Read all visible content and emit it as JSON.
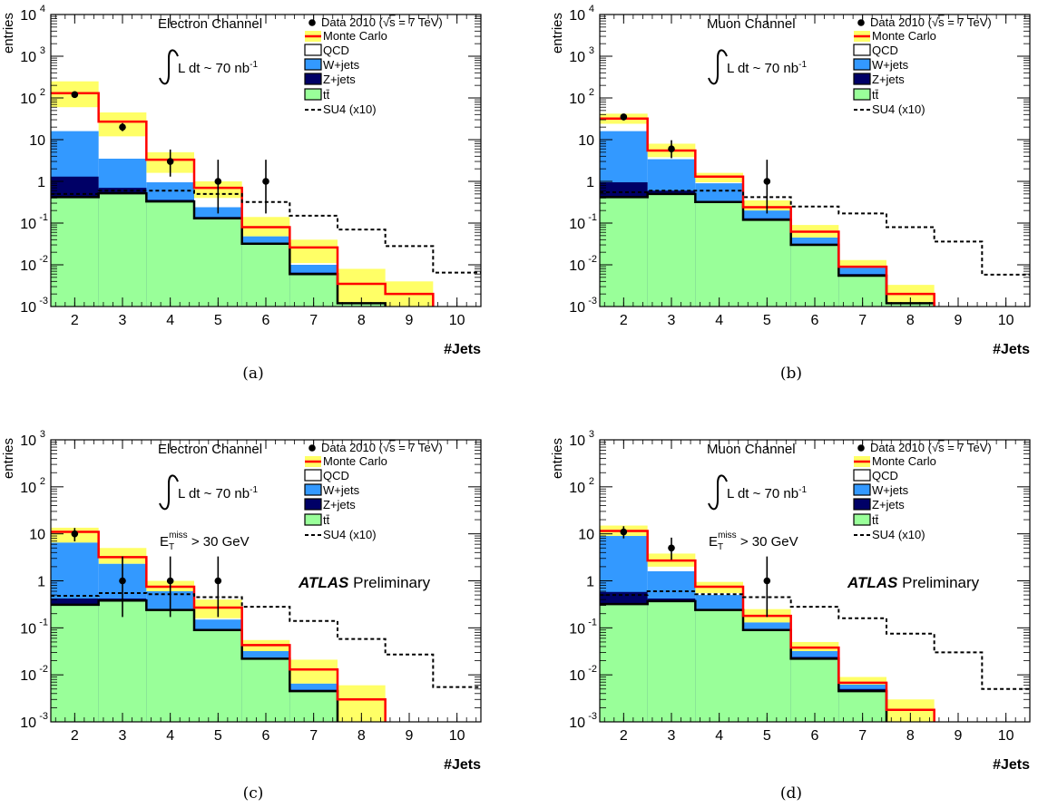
{
  "chart_data": [
    {
      "type": "bar",
      "panel_label": "(a)",
      "channel": "Electron Channel",
      "lumi": "L dt ~ 70 nb",
      "lumi_sup": "-1",
      "met_cut": null,
      "atlas_label": null,
      "xlabel": "#Jets",
      "ylabel": "entries",
      "log_y": true,
      "ylim": [
        0.001,
        10000
      ],
      "y_ticks": [
        {
          "v": 0.001,
          "b": "10",
          "e": "-3"
        },
        {
          "v": 0.01,
          "b": "10",
          "e": "-2"
        },
        {
          "v": 0.1,
          "b": "10",
          "e": "-1"
        },
        {
          "v": 1,
          "b": "1",
          "e": ""
        },
        {
          "v": 10,
          "b": "10",
          "e": ""
        },
        {
          "v": 100,
          "b": "10",
          "e": "2"
        },
        {
          "v": 1000,
          "b": "10",
          "e": "3"
        },
        {
          "v": 10000,
          "b": "10",
          "e": "4"
        }
      ],
      "x_range": [
        1.5,
        10.5
      ],
      "categories": [
        "2",
        "3",
        "4",
        "5",
        "6",
        "7",
        "8",
        "9",
        "10"
      ],
      "stack": {
        "ttbar": [
          0.42,
          0.52,
          0.33,
          0.13,
          0.032,
          0.006,
          0.0012,
          0.0006,
          0.0006
        ],
        "zjets": [
          1.3,
          0.7,
          0.36,
          0.14,
          0.034,
          0.0065,
          0.0012,
          0.0006,
          0.0006
        ],
        "wjets": [
          16,
          3.5,
          0.95,
          0.24,
          0.048,
          0.01,
          0.0012,
          0.0006,
          0.0006
        ],
        "qcd": [
          16,
          3.5,
          0.95,
          0.24,
          0.048,
          0.01,
          0.0012,
          0.0006,
          0.0006
        ]
      },
      "monte_carlo": [
        130,
        27,
        3.3,
        0.7,
        0.08,
        0.026,
        0.0035,
        0.002,
        0.0006
      ],
      "mc_band_low": [
        60,
        12,
        1.6,
        0.4,
        0.045,
        0.011,
        0.0012,
        0.001,
        0.0006
      ],
      "mc_band_high": [
        250,
        45,
        5,
        1.0,
        0.14,
        0.04,
        0.008,
        0.004,
        0.0006
      ],
      "su4": [
        0.5,
        0.6,
        0.6,
        0.5,
        0.32,
        0.15,
        0.07,
        0.028,
        0.0065
      ],
      "data": [
        {
          "x": 2,
          "y": 120,
          "lo": 110,
          "hi": 132
        },
        {
          "x": 3,
          "y": 20,
          "lo": 16,
          "hi": 25
        },
        {
          "x": 4,
          "y": 3,
          "lo": 1.3,
          "hi": 5.8
        },
        {
          "x": 5,
          "y": 1,
          "lo": 0.17,
          "hi": 3.3
        },
        {
          "x": 6,
          "y": 1,
          "lo": 0.17,
          "hi": 3.3
        }
      ]
    },
    {
      "type": "bar",
      "panel_label": "(b)",
      "channel": "Muon Channel",
      "lumi": "L dt ~ 70 nb",
      "lumi_sup": "-1",
      "met_cut": null,
      "atlas_label": null,
      "xlabel": "#Jets",
      "ylabel": "entries",
      "log_y": true,
      "ylim": [
        0.001,
        10000
      ],
      "y_ticks": [
        {
          "v": 0.001,
          "b": "10",
          "e": "-3"
        },
        {
          "v": 0.01,
          "b": "10",
          "e": "-2"
        },
        {
          "v": 0.1,
          "b": "10",
          "e": "-1"
        },
        {
          "v": 1,
          "b": "1",
          "e": ""
        },
        {
          "v": 10,
          "b": "10",
          "e": ""
        },
        {
          "v": 100,
          "b": "10",
          "e": "2"
        },
        {
          "v": 1000,
          "b": "10",
          "e": "3"
        },
        {
          "v": 10000,
          "b": "10",
          "e": "4"
        }
      ],
      "x_range": [
        1.5,
        10.5
      ],
      "categories": [
        "2",
        "3",
        "4",
        "5",
        "6",
        "7",
        "8",
        "9",
        "10"
      ],
      "stack": {
        "ttbar": [
          0.42,
          0.5,
          0.32,
          0.12,
          0.03,
          0.0055,
          0.0012,
          0.0006,
          0.0006
        ],
        "zjets": [
          0.95,
          0.6,
          0.34,
          0.13,
          0.032,
          0.006,
          0.0012,
          0.0006,
          0.0006
        ],
        "wjets": [
          16,
          3.4,
          0.9,
          0.2,
          0.045,
          0.0085,
          0.0012,
          0.0006,
          0.0006
        ],
        "qcd": [
          16,
          3.4,
          0.9,
          0.2,
          0.045,
          0.0085,
          0.0012,
          0.0006,
          0.0006
        ]
      },
      "monte_carlo": [
        32,
        5.5,
        1.3,
        0.24,
        0.062,
        0.009,
        0.002,
        0.0006,
        0.0006
      ],
      "mc_band_low": [
        24,
        3.8,
        0.95,
        0.17,
        0.042,
        0.006,
        0.0012,
        0.0006,
        0.0006
      ],
      "mc_band_high": [
        42,
        8,
        1.6,
        0.35,
        0.09,
        0.013,
        0.0033,
        0.0006,
        0.0006
      ],
      "su4": [
        0.55,
        0.6,
        0.6,
        0.42,
        0.25,
        0.17,
        0.08,
        0.036,
        0.0058
      ],
      "data": [
        {
          "x": 2,
          "y": 35,
          "lo": 29,
          "hi": 41
        },
        {
          "x": 3,
          "y": 6,
          "lo": 3.6,
          "hi": 9.7
        },
        {
          "x": 5,
          "y": 1,
          "lo": 0.17,
          "hi": 3.3
        }
      ]
    },
    {
      "type": "bar",
      "panel_label": "(c)",
      "channel": "Electron Channel",
      "lumi": "L dt ~ 70 nb",
      "lumi_sup": "-1",
      "met_cut": {
        "base": "E",
        "sub": "T",
        "sup": "miss",
        "rest": " > 30 GeV"
      },
      "atlas_label": {
        "bold": "ATLAS",
        "rest": " Preliminary"
      },
      "xlabel": "#Jets",
      "ylabel": "entries",
      "log_y": true,
      "ylim": [
        0.001,
        1000
      ],
      "y_ticks": [
        {
          "v": 0.001,
          "b": "10",
          "e": "-3"
        },
        {
          "v": 0.01,
          "b": "10",
          "e": "-2"
        },
        {
          "v": 0.1,
          "b": "10",
          "e": "-1"
        },
        {
          "v": 1,
          "b": "1",
          "e": ""
        },
        {
          "v": 10,
          "b": "10",
          "e": ""
        },
        {
          "v": 100,
          "b": "10",
          "e": "2"
        },
        {
          "v": 1000,
          "b": "10",
          "e": "3"
        }
      ],
      "x_range": [
        1.5,
        10.5
      ],
      "categories": [
        "2",
        "3",
        "4",
        "5",
        "6",
        "7",
        "8",
        "9",
        "10"
      ],
      "stack": {
        "ttbar": [
          0.31,
          0.38,
          0.24,
          0.09,
          0.022,
          0.0045,
          0.0006,
          0.0006,
          0.0006
        ],
        "zjets": [
          0.42,
          0.42,
          0.25,
          0.095,
          0.023,
          0.0048,
          0.0006,
          0.0006,
          0.0006
        ],
        "wjets": [
          6.5,
          2.3,
          0.6,
          0.15,
          0.032,
          0.0065,
          0.0006,
          0.0006,
          0.0006
        ],
        "qcd": [
          6.5,
          2.3,
          0.6,
          0.15,
          0.032,
          0.0065,
          0.0006,
          0.0006,
          0.0006
        ]
      },
      "monte_carlo": [
        11,
        3.2,
        0.75,
        0.27,
        0.043,
        0.013,
        0.003,
        0.0006,
        0.0006
      ],
      "mc_band_low": [
        6,
        2,
        0.5,
        0.16,
        0.03,
        0.006,
        0.0006,
        0.0006,
        0.0006
      ],
      "mc_band_high": [
        13.5,
        5,
        1.0,
        0.4,
        0.055,
        0.021,
        0.006,
        0.0006,
        0.0006
      ],
      "su4": [
        0.48,
        0.55,
        0.52,
        0.45,
        0.28,
        0.14,
        0.058,
        0.027,
        0.0055
      ],
      "data": [
        {
          "x": 2,
          "y": 10,
          "lo": 6.9,
          "hi": 13.3
        },
        {
          "x": 3,
          "y": 1,
          "lo": 0.17,
          "hi": 3.3
        },
        {
          "x": 4,
          "y": 1,
          "lo": 0.17,
          "hi": 3.3
        },
        {
          "x": 5,
          "y": 1,
          "lo": 0.17,
          "hi": 3.3
        }
      ]
    },
    {
      "type": "bar",
      "panel_label": "(d)",
      "channel": "Muon Channel",
      "lumi": "L dt ~ 70 nb",
      "lumi_sup": "-1",
      "met_cut": {
        "base": "E",
        "sub": "T",
        "sup": "miss",
        "rest": " > 30 GeV"
      },
      "atlas_label": {
        "bold": "ATLAS",
        "rest": " Preliminary"
      },
      "xlabel": "#Jets",
      "ylabel": "entries",
      "log_y": true,
      "ylim": [
        0.001,
        1000
      ],
      "y_ticks": [
        {
          "v": 0.001,
          "b": "10",
          "e": "-3"
        },
        {
          "v": 0.01,
          "b": "10",
          "e": "-2"
        },
        {
          "v": 0.1,
          "b": "10",
          "e": "-1"
        },
        {
          "v": 1,
          "b": "1",
          "e": ""
        },
        {
          "v": 10,
          "b": "10",
          "e": ""
        },
        {
          "v": 100,
          "b": "10",
          "e": "2"
        },
        {
          "v": 1000,
          "b": "10",
          "e": "3"
        }
      ],
      "x_range": [
        1.5,
        10.5
      ],
      "categories": [
        "2",
        "3",
        "4",
        "5",
        "6",
        "7",
        "8",
        "9",
        "10"
      ],
      "stack": {
        "ttbar": [
          0.32,
          0.37,
          0.24,
          0.09,
          0.022,
          0.0045,
          0.0006,
          0.0006,
          0.0006
        ],
        "zjets": [
          0.58,
          0.42,
          0.25,
          0.095,
          0.024,
          0.005,
          0.0006,
          0.0006,
          0.0006
        ],
        "wjets": [
          9,
          1.6,
          0.5,
          0.13,
          0.032,
          0.0062,
          0.0006,
          0.0006,
          0.0006
        ],
        "qcd": [
          9,
          1.6,
          0.5,
          0.13,
          0.032,
          0.0062,
          0.0006,
          0.0006,
          0.0006
        ]
      },
      "monte_carlo": [
        11.5,
        2.7,
        0.75,
        0.18,
        0.038,
        0.0068,
        0.0018,
        0.0006,
        0.0006
      ],
      "mc_band_low": [
        8.5,
        2,
        0.55,
        0.12,
        0.026,
        0.0045,
        0.0006,
        0.0006,
        0.0006
      ],
      "mc_band_high": [
        15,
        3.8,
        0.95,
        0.25,
        0.05,
        0.009,
        0.003,
        0.0006,
        0.0006
      ],
      "su4": [
        0.5,
        0.6,
        0.52,
        0.45,
        0.28,
        0.16,
        0.075,
        0.03,
        0.005
      ],
      "data": [
        {
          "x": 2,
          "y": 11,
          "lo": 8,
          "hi": 14.5
        },
        {
          "x": 3,
          "y": 5,
          "lo": 2.8,
          "hi": 8.3
        },
        {
          "x": 5,
          "y": 1,
          "lo": 0.17,
          "hi": 3.3
        }
      ]
    }
  ],
  "legend": {
    "data": "Data 2010 (",
    "data_sqrt": "√",
    "data_s": "s",
    "data_tail": " = 7 TeV)",
    "mc": "Monte Carlo",
    "qcd": "QCD",
    "wjets": "W+jets",
    "zjets": "Z+jets",
    "ttbar": "tt̄",
    "su4": "SU4 (x10)"
  },
  "colors": {
    "ttbar": "#99ff99",
    "zjets": "#000066",
    "wjets": "#3399ff",
    "qcd": "#ffffff",
    "mc": "#ff0000",
    "band": "#ffff66",
    "su4": "#000000"
  }
}
